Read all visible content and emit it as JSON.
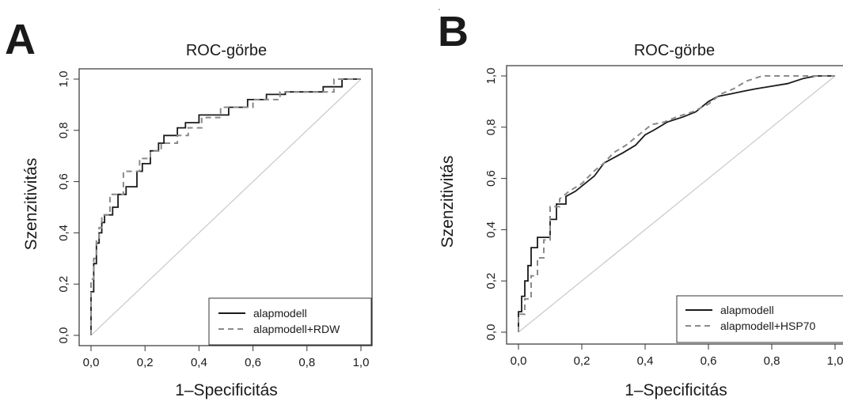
{
  "chart_data": [
    {
      "panel_label": "A",
      "type": "line",
      "title": "ROC-görbe",
      "xlabel": "1–Specificitás",
      "ylabel": "Szenzitivitás",
      "xlim": [
        0,
        1
      ],
      "ylim": [
        0,
        1
      ],
      "x_ticks": [
        "0,0",
        "0,2",
        "0,4",
        "0,6",
        "0,8",
        "1,0"
      ],
      "y_ticks": [
        "0,0",
        "0,2",
        "0,4",
        "0,6",
        "0,8",
        "1,0"
      ],
      "grid": false,
      "legend_position": "bottom-right",
      "reference_line": true,
      "series": [
        {
          "name": "alapmodell",
          "line_style": "solid",
          "color": "#1a1a1a",
          "x": [
            0.0,
            0.0,
            0.01,
            0.01,
            0.02,
            0.02,
            0.03,
            0.03,
            0.04,
            0.04,
            0.05,
            0.05,
            0.08,
            0.08,
            0.1,
            0.1,
            0.13,
            0.13,
            0.17,
            0.17,
            0.19,
            0.19,
            0.22,
            0.22,
            0.25,
            0.25,
            0.27,
            0.27,
            0.32,
            0.32,
            0.35,
            0.35,
            0.4,
            0.4,
            0.43,
            0.43,
            0.51,
            0.51,
            0.58,
            0.58,
            0.65,
            0.65,
            0.72,
            0.72,
            0.86,
            0.86,
            0.93,
            0.93,
            1.0
          ],
          "y": [
            0.0,
            0.17,
            0.17,
            0.28,
            0.28,
            0.36,
            0.36,
            0.4,
            0.4,
            0.44,
            0.44,
            0.47,
            0.47,
            0.5,
            0.5,
            0.55,
            0.55,
            0.58,
            0.58,
            0.64,
            0.64,
            0.67,
            0.67,
            0.72,
            0.72,
            0.75,
            0.75,
            0.78,
            0.78,
            0.81,
            0.81,
            0.83,
            0.83,
            0.86,
            0.86,
            0.86,
            0.86,
            0.89,
            0.89,
            0.92,
            0.92,
            0.94,
            0.94,
            0.95,
            0.95,
            0.97,
            0.97,
            1.0,
            1.0
          ]
        },
        {
          "name": "alapmodell+RDW",
          "line_style": "dashed",
          "color": "#8a8a8a",
          "x": [
            0.0,
            0.0,
            0.01,
            0.01,
            0.02,
            0.02,
            0.03,
            0.03,
            0.04,
            0.04,
            0.07,
            0.07,
            0.12,
            0.12,
            0.18,
            0.18,
            0.22,
            0.22,
            0.26,
            0.26,
            0.32,
            0.32,
            0.36,
            0.36,
            0.41,
            0.41,
            0.48,
            0.48,
            0.6,
            0.6,
            0.7,
            0.7,
            0.9,
            0.9,
            1.0
          ],
          "y": [
            0.0,
            0.22,
            0.22,
            0.3,
            0.3,
            0.38,
            0.38,
            0.42,
            0.42,
            0.47,
            0.47,
            0.55,
            0.55,
            0.64,
            0.64,
            0.69,
            0.69,
            0.72,
            0.72,
            0.75,
            0.75,
            0.78,
            0.78,
            0.81,
            0.81,
            0.85,
            0.85,
            0.89,
            0.89,
            0.92,
            0.92,
            0.95,
            0.95,
            1.0,
            1.0
          ]
        }
      ]
    },
    {
      "panel_label": "B",
      "type": "line",
      "title": "ROC-görbe",
      "xlabel": "1–Specificitás",
      "ylabel": "Szenzitivitás",
      "xlim": [
        0,
        1
      ],
      "ylim": [
        0,
        1
      ],
      "x_ticks": [
        "0,0",
        "0,2",
        "0,4",
        "0,6",
        "0,8",
        "1,0"
      ],
      "y_ticks": [
        "0,0",
        "0,2",
        "0,4",
        "0,6",
        "0,8",
        "1,0"
      ],
      "grid": false,
      "legend_position": "bottom-right",
      "reference_line": true,
      "series": [
        {
          "name": "alapmodell",
          "line_style": "solid",
          "color": "#1a1a1a",
          "x": [
            0.0,
            0.0,
            0.01,
            0.01,
            0.02,
            0.02,
            0.03,
            0.03,
            0.04,
            0.04,
            0.06,
            0.06,
            0.1,
            0.1,
            0.12,
            0.12,
            0.15,
            0.15,
            0.18,
            0.2,
            0.24,
            0.27,
            0.3,
            0.33,
            0.37,
            0.4,
            0.43,
            0.47,
            0.52,
            0.56,
            0.6,
            0.63,
            0.67,
            0.71,
            0.75,
            0.8,
            0.85,
            0.9,
            0.94,
            0.97,
            1.0
          ],
          "y": [
            0.0,
            0.08,
            0.08,
            0.14,
            0.14,
            0.2,
            0.2,
            0.26,
            0.26,
            0.33,
            0.33,
            0.37,
            0.37,
            0.44,
            0.44,
            0.5,
            0.5,
            0.53,
            0.55,
            0.57,
            0.61,
            0.66,
            0.68,
            0.7,
            0.73,
            0.77,
            0.79,
            0.82,
            0.84,
            0.86,
            0.9,
            0.92,
            0.93,
            0.94,
            0.95,
            0.96,
            0.97,
            0.99,
            1.0,
            1.0,
            1.0
          ]
        },
        {
          "name": "alapmodell+HSP70",
          "line_style": "dashed",
          "color": "#8a8a8a",
          "x": [
            0.0,
            0.0,
            0.02,
            0.02,
            0.04,
            0.04,
            0.06,
            0.06,
            0.08,
            0.08,
            0.1,
            0.1,
            0.13,
            0.13,
            0.16,
            0.2,
            0.24,
            0.27,
            0.3,
            0.34,
            0.38,
            0.42,
            0.46,
            0.5,
            0.55,
            0.6,
            0.64,
            0.68,
            0.72,
            0.77,
            0.82,
            0.88,
            0.94,
            1.0
          ],
          "y": [
            0.0,
            0.07,
            0.07,
            0.13,
            0.13,
            0.22,
            0.22,
            0.29,
            0.29,
            0.36,
            0.36,
            0.49,
            0.49,
            0.52,
            0.55,
            0.58,
            0.63,
            0.66,
            0.7,
            0.73,
            0.77,
            0.81,
            0.82,
            0.84,
            0.86,
            0.89,
            0.93,
            0.95,
            0.98,
            1.0,
            1.0,
            1.0,
            1.0,
            1.0
          ]
        }
      ]
    }
  ]
}
